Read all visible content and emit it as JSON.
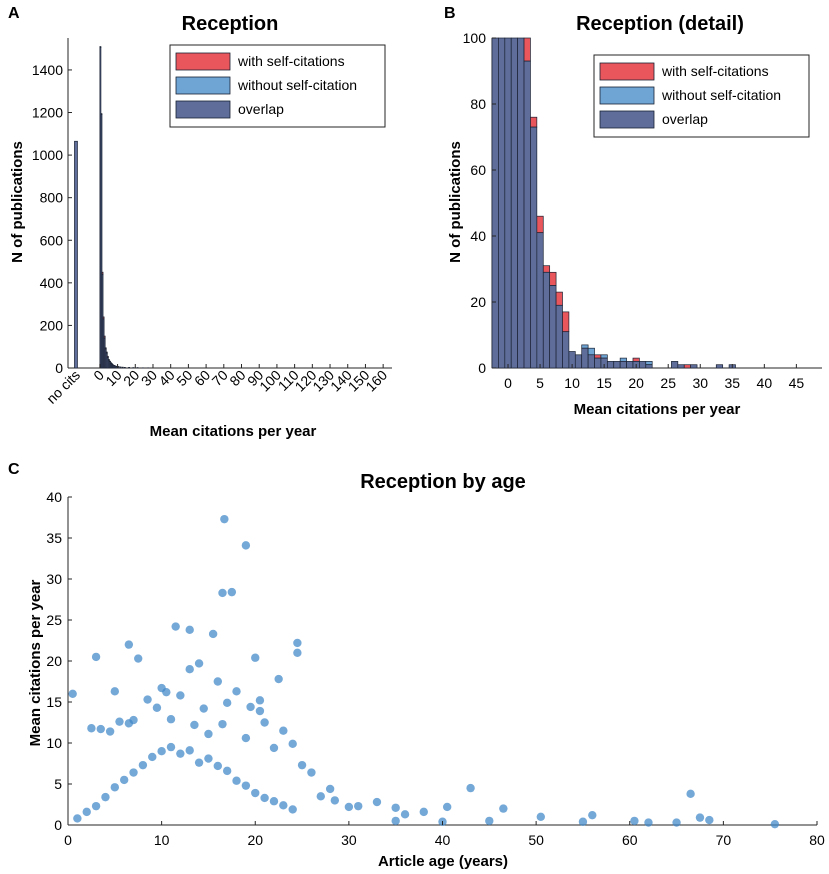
{
  "panels": {
    "a": "A",
    "b": "B",
    "c": "C"
  },
  "colors": {
    "self": "#e9565c",
    "without": "#6fa5d4",
    "overlap": "#5f6d9a",
    "scatter": "#3e86c8",
    "edge": "#1a2233"
  },
  "chart_data": [
    {
      "type": "bar",
      "title": "Reception",
      "xlabel": "Mean citations per year",
      "ylabel": "N of publications",
      "xlim": [
        -18,
        165
      ],
      "ylim": [
        0,
        1550
      ],
      "xticks": [
        0,
        10,
        20,
        30,
        40,
        50,
        60,
        70,
        80,
        90,
        100,
        110,
        120,
        130,
        140,
        150,
        160
      ],
      "xtick_labels": [
        "0",
        "10",
        "20",
        "30",
        "40",
        "50",
        "60",
        "70",
        "80",
        "90",
        "100",
        "110",
        "120",
        "130",
        "140",
        "150",
        "160"
      ],
      "special_bin": {
        "label": "no cits",
        "x": -13.5,
        "value": 1065
      },
      "yticks": [
        0,
        200,
        400,
        600,
        800,
        1000,
        1200,
        1400
      ],
      "ytick_labels": [
        "0",
        "200",
        "400",
        "600",
        "800",
        "1000",
        "1200",
        "1400"
      ],
      "bin_width": 0.6,
      "x": [
        -0.3,
        0.3,
        0.9,
        1.5,
        2.1,
        2.7,
        3.3,
        3.9,
        4.5,
        5.1,
        5.7,
        6.3,
        6.9,
        7.5,
        8.1,
        8.7,
        9.3,
        10.5,
        11.7,
        12.9,
        14.1,
        16.5,
        18.9,
        21.3,
        24.3,
        27.3
      ],
      "series": [
        {
          "name": "with self-citations",
          "values": [
            0,
            1505,
            1190,
            450,
            240,
            150,
            95,
            75,
            55,
            40,
            32,
            25,
            20,
            15,
            12,
            10,
            8,
            7,
            5,
            4,
            3,
            3,
            2,
            2,
            1,
            1
          ]
        },
        {
          "name": "without self-citation",
          "values": [
            0,
            1510,
            1195,
            440,
            230,
            140,
            90,
            70,
            50,
            37,
            30,
            22,
            18,
            14,
            11,
            9,
            7,
            6,
            5,
            4,
            3,
            3,
            2,
            2,
            1,
            1
          ]
        }
      ],
      "legend": [
        "with self-citations",
        "without self-citation",
        "overlap"
      ],
      "legend_position": "top-right"
    },
    {
      "type": "bar",
      "title": "Reception (detail)",
      "xlabel": "Mean citations per year",
      "ylabel": "N of publications",
      "xlim": [
        -2.5,
        49
      ],
      "ylim": [
        0,
        100
      ],
      "xticks": [
        0,
        5,
        10,
        15,
        20,
        25,
        30,
        35,
        40,
        45
      ],
      "xtick_labels": [
        "0",
        "5",
        "10",
        "15",
        "20",
        "25",
        "30",
        "35",
        "40",
        "45"
      ],
      "yticks": [
        0,
        20,
        40,
        60,
        80,
        100
      ],
      "ytick_labels": [
        "0",
        "20",
        "40",
        "60",
        "80",
        "100"
      ],
      "bin_width": 1,
      "x": [
        -2,
        -1,
        0,
        1,
        2,
        3,
        4,
        5,
        6,
        7,
        8,
        9,
        10,
        11,
        12,
        13,
        14,
        15,
        16,
        17,
        18,
        19,
        20,
        21,
        22,
        23,
        24,
        25,
        26,
        27,
        28,
        29,
        30,
        31,
        32,
        33,
        34,
        35,
        36,
        37,
        38,
        39,
        40,
        41,
        42,
        43,
        44,
        45,
        46,
        47
      ],
      "series": [
        {
          "name": "with self-citations",
          "values": [
            100,
            100,
            100,
            100,
            100,
            100,
            76,
            46,
            31,
            29,
            23,
            17,
            5,
            4,
            6,
            4,
            4,
            3,
            2,
            2,
            2,
            2,
            3,
            2,
            1,
            0,
            0,
            0,
            2,
            1,
            1,
            1,
            0,
            0,
            0,
            1,
            0,
            1,
            0,
            0,
            0,
            0,
            0,
            0,
            0,
            0,
            0,
            0,
            0,
            0
          ]
        },
        {
          "name": "without self-citation",
          "values": [
            100,
            100,
            100,
            100,
            100,
            93,
            73,
            41,
            29,
            25,
            19,
            11,
            5,
            4,
            7,
            6,
            3,
            4,
            2,
            2,
            3,
            2,
            2,
            2,
            2,
            0,
            0,
            0,
            2,
            1,
            0,
            1,
            0,
            0,
            0,
            1,
            0,
            1,
            0,
            0,
            0,
            0,
            0,
            0,
            0,
            0,
            0,
            0,
            0,
            0
          ]
        }
      ],
      "legend": [
        "with self-citations",
        "without self-citation",
        "overlap"
      ],
      "legend_position": "top-right"
    },
    {
      "type": "scatter",
      "title": "Reception by age",
      "xlabel": "Article age (years)",
      "ylabel": "Mean citations per year",
      "xlim": [
        0,
        80
      ],
      "ylim": [
        0,
        40
      ],
      "xticks": [
        0,
        10,
        20,
        30,
        40,
        50,
        60,
        70,
        80
      ],
      "xtick_labels": [
        "0",
        "10",
        "20",
        "30",
        "40",
        "50",
        "60",
        "70",
        "80"
      ],
      "yticks": [
        0,
        5,
        10,
        15,
        20,
        25,
        30,
        35,
        40
      ],
      "ytick_labels": [
        "0",
        "5",
        "10",
        "15",
        "20",
        "25",
        "30",
        "35",
        "40"
      ],
      "points": [
        [
          0.5,
          16.0
        ],
        [
          3.0,
          20.5
        ],
        [
          6.5,
          22.0
        ],
        [
          7.5,
          20.3
        ],
        [
          11.5,
          24.2
        ],
        [
          13.0,
          19.0
        ],
        [
          13.0,
          23.8
        ],
        [
          14.0,
          19.7
        ],
        [
          15.5,
          23.3
        ],
        [
          16.7,
          37.3
        ],
        [
          16.5,
          28.3
        ],
        [
          17.5,
          28.4
        ],
        [
          19.0,
          34.1
        ],
        [
          20.0,
          20.4
        ],
        [
          22.5,
          17.8
        ],
        [
          24.5,
          22.2
        ],
        [
          24.5,
          21.0
        ],
        [
          5.0,
          16.3
        ],
        [
          10.0,
          16.7
        ],
        [
          10.5,
          16.2
        ],
        [
          16.0,
          17.5
        ],
        [
          18.0,
          16.3
        ],
        [
          20.5,
          15.2
        ],
        [
          20.5,
          13.9
        ],
        [
          8.5,
          15.3
        ],
        [
          9.5,
          14.3
        ],
        [
          12.0,
          15.8
        ],
        [
          14.5,
          14.2
        ],
        [
          17.0,
          14.9
        ],
        [
          19.5,
          14.4
        ],
        [
          21.0,
          12.5
        ],
        [
          23.0,
          11.5
        ],
        [
          5.5,
          12.6
        ],
        [
          6.5,
          12.4
        ],
        [
          7.0,
          12.8
        ],
        [
          11.0,
          12.9
        ],
        [
          13.5,
          12.2
        ],
        [
          16.5,
          12.3
        ],
        [
          2.5,
          11.8
        ],
        [
          3.5,
          11.7
        ],
        [
          4.5,
          11.4
        ],
        [
          15.0,
          11.1
        ],
        [
          19.0,
          10.6
        ],
        [
          22.0,
          9.4
        ],
        [
          24.0,
          9.9
        ],
        [
          25.0,
          7.3
        ],
        [
          26.0,
          6.4
        ],
        [
          27.0,
          3.5
        ],
        [
          28.0,
          4.4
        ],
        [
          28.5,
          3.0
        ],
        [
          30.0,
          2.2
        ],
        [
          31.0,
          2.3
        ],
        [
          33.0,
          2.8
        ],
        [
          35.0,
          2.1
        ],
        [
          36.0,
          1.3
        ],
        [
          38.0,
          1.6
        ],
        [
          40.5,
          2.2
        ],
        [
          43.0,
          4.5
        ],
        [
          46.5,
          2.0
        ],
        [
          50.5,
          1.0
        ],
        [
          56.0,
          1.2
        ],
        [
          60.5,
          0.5
        ],
        [
          66.5,
          3.8
        ],
        [
          67.5,
          0.9
        ],
        [
          68.5,
          0.6
        ],
        [
          75.5,
          0.1
        ],
        [
          35.0,
          0.5
        ],
        [
          40.0,
          0.4
        ],
        [
          45.0,
          0.5
        ],
        [
          55.0,
          0.4
        ],
        [
          62.0,
          0.3
        ],
        [
          65.0,
          0.3
        ],
        [
          1.0,
          0.8
        ],
        [
          2.0,
          1.6
        ],
        [
          3.0,
          2.3
        ],
        [
          4.0,
          3.4
        ],
        [
          5.0,
          4.6
        ],
        [
          6.0,
          5.5
        ],
        [
          7.0,
          6.4
        ],
        [
          8.0,
          7.3
        ],
        [
          9.0,
          8.3
        ],
        [
          10.0,
          9.0
        ],
        [
          11.0,
          9.5
        ],
        [
          12.0,
          8.7
        ],
        [
          13.0,
          9.1
        ],
        [
          14.0,
          7.6
        ],
        [
          15.0,
          8.1
        ],
        [
          16.0,
          7.2
        ],
        [
          17.0,
          6.6
        ],
        [
          18.0,
          5.4
        ],
        [
          19.0,
          4.8
        ],
        [
          20.0,
          3.9
        ],
        [
          21.0,
          3.3
        ],
        [
          22.0,
          2.9
        ],
        [
          23.0,
          2.4
        ],
        [
          24.0,
          1.9
        ]
      ]
    }
  ]
}
